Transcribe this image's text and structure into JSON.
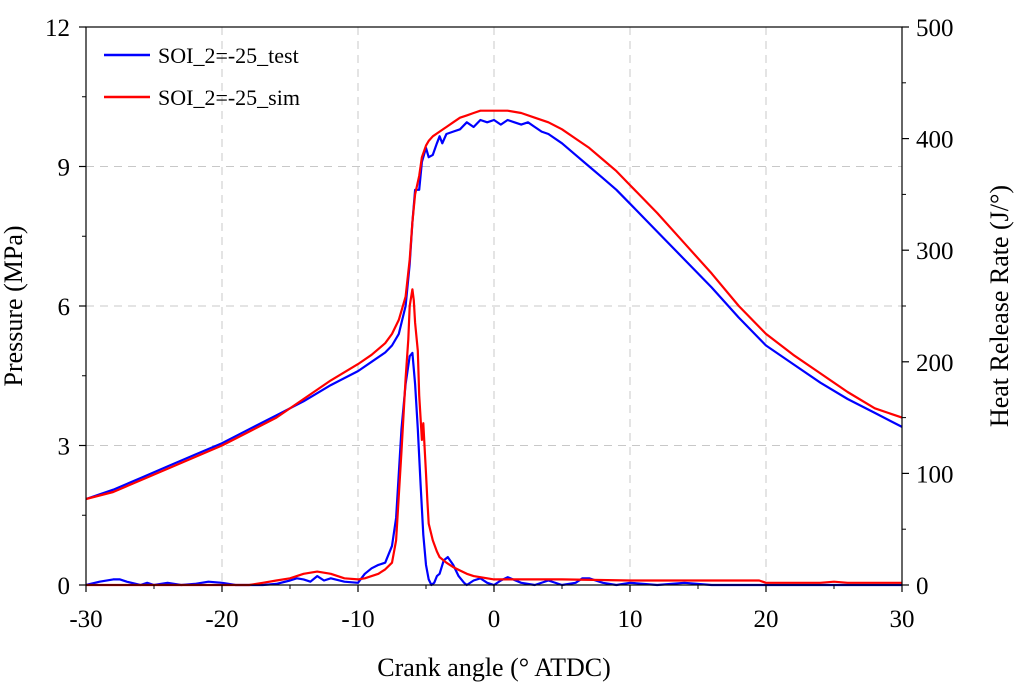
{
  "chart_data": {
    "type": "line",
    "title": "",
    "xlabel": "Crank angle  (° ATDC)",
    "ylabel_left": "Pressure (MPa)",
    "ylabel_right": "Heat Release Rate (J/°)",
    "xlim": [
      -30,
      30
    ],
    "ylim_left": [
      0,
      12
    ],
    "ylim_right": [
      0,
      500
    ],
    "x_ticks": [
      "-30",
      "-20",
      "-10",
      "0",
      "10",
      "20",
      "30"
    ],
    "y_left_ticks": [
      "0",
      "3",
      "6",
      "9",
      "12"
    ],
    "y_right_ticks": [
      "0",
      "100",
      "200",
      "300",
      "400",
      "500"
    ],
    "grid": true,
    "legend_position": "top-left",
    "series": [
      {
        "name": "SOI_2=-25_test",
        "axis": "left",
        "quantity": "pressure",
        "color": "#0000ff",
        "x": [
          -30,
          -28,
          -26,
          -24,
          -22,
          -20,
          -18,
          -16,
          -14,
          -12,
          -10,
          -9,
          -8,
          -7.5,
          -7,
          -6.5,
          -6.2,
          -6,
          -5.8,
          -5.5,
          -5.3,
          -5,
          -4.8,
          -4.5,
          -4.2,
          -4,
          -3.8,
          -3.5,
          -3,
          -2.5,
          -2,
          -1.5,
          -1,
          -0.5,
          0,
          0.5,
          1,
          1.5,
          2,
          2.5,
          3,
          3.5,
          4,
          5,
          6,
          7,
          8,
          9,
          10,
          12,
          14,
          16,
          18,
          20,
          22,
          24,
          26,
          28,
          30
        ],
        "y": [
          1.85,
          2.05,
          2.3,
          2.55,
          2.8,
          3.05,
          3.35,
          3.65,
          3.95,
          4.3,
          4.6,
          4.8,
          5.0,
          5.15,
          5.4,
          6.0,
          6.9,
          7.8,
          8.5,
          8.5,
          9.1,
          9.4,
          9.2,
          9.25,
          9.5,
          9.65,
          9.5,
          9.7,
          9.75,
          9.8,
          9.95,
          9.85,
          10.0,
          9.95,
          10.0,
          9.9,
          10.0,
          9.95,
          9.9,
          9.95,
          9.85,
          9.75,
          9.7,
          9.5,
          9.25,
          9.0,
          8.75,
          8.5,
          8.2,
          7.6,
          7.0,
          6.4,
          5.75,
          5.15,
          4.75,
          4.35,
          4.0,
          3.7,
          3.4
        ]
      },
      {
        "name": "SOI_2=-25_sim",
        "axis": "left",
        "quantity": "pressure",
        "color": "#ff0000",
        "x": [
          -30,
          -28,
          -26,
          -24,
          -22,
          -20,
          -18,
          -16,
          -14,
          -12,
          -10,
          -9,
          -8,
          -7.5,
          -7,
          -6.5,
          -6.2,
          -6,
          -5.8,
          -5.5,
          -5.3,
          -5,
          -4.8,
          -4.5,
          -4,
          -3.5,
          -3,
          -2.5,
          -2,
          -1.5,
          -1,
          0,
          1,
          2,
          3,
          4,
          5,
          6,
          7,
          8,
          9,
          10,
          12,
          14,
          16,
          18,
          20,
          22,
          24,
          26,
          28,
          30
        ],
        "y": [
          1.85,
          2.0,
          2.25,
          2.5,
          2.75,
          3.0,
          3.3,
          3.6,
          4.0,
          4.4,
          4.75,
          4.95,
          5.2,
          5.4,
          5.7,
          6.2,
          7.0,
          7.8,
          8.4,
          8.8,
          9.2,
          9.45,
          9.55,
          9.65,
          9.75,
          9.85,
          9.95,
          10.05,
          10.1,
          10.15,
          10.2,
          10.2,
          10.2,
          10.15,
          10.05,
          9.95,
          9.8,
          9.6,
          9.4,
          9.15,
          8.9,
          8.6,
          8.0,
          7.35,
          6.7,
          6.0,
          5.4,
          4.95,
          4.55,
          4.15,
          3.8,
          3.6
        ]
      },
      {
        "name": "SOI_2=-25_test",
        "axis": "right",
        "quantity": "heat release rate",
        "color": "#0000ff",
        "show_in_legend": false,
        "x": [
          -30,
          -29,
          -28,
          -27.5,
          -27,
          -26,
          -25.5,
          -25,
          -24,
          -23,
          -22,
          -21,
          -20,
          -19,
          -18,
          -17,
          -16,
          -15,
          -14.5,
          -14,
          -13.5,
          -13,
          -12.5,
          -12,
          -11,
          -10,
          -9.5,
          -9,
          -8.5,
          -8,
          -7.5,
          -7.2,
          -7,
          -6.8,
          -6.5,
          -6.2,
          -6,
          -5.8,
          -5.6,
          -5.4,
          -5.2,
          -5,
          -4.8,
          -4.6,
          -4.4,
          -4.2,
          -4,
          -3.7,
          -3.4,
          -3,
          -2.6,
          -2.2,
          -2,
          -1.5,
          -1,
          -0.5,
          0,
          0.5,
          1,
          2,
          3,
          4,
          5,
          6,
          6.5,
          7,
          8,
          9,
          10,
          12,
          14,
          16,
          18,
          20,
          22,
          24,
          26,
          28,
          30
        ],
        "y": [
          0,
          3,
          5,
          5,
          3,
          0,
          2,
          0,
          2,
          0,
          1,
          3,
          2,
          0,
          0,
          0,
          1,
          4,
          6,
          5,
          3,
          8,
          4,
          6,
          3,
          2,
          10,
          15,
          18,
          20,
          35,
          60,
          100,
          140,
          180,
          205,
          208,
          180,
          140,
          90,
          45,
          18,
          5,
          0,
          2,
          8,
          10,
          22,
          25,
          18,
          8,
          2,
          0,
          4,
          6,
          2,
          0,
          4,
          7,
          2,
          0,
          4,
          0,
          2,
          6,
          6,
          2,
          0,
          2,
          0,
          2,
          0,
          0,
          0,
          0,
          0,
          0,
          0,
          0
        ]
      },
      {
        "name": "SOI_2=-25_sim",
        "axis": "right",
        "quantity": "heat release rate",
        "color": "#ff0000",
        "show_in_legend": false,
        "x": [
          -30,
          -20,
          -18,
          -17,
          -16,
          -15,
          -14,
          -13,
          -12,
          -11,
          -10,
          -9.5,
          -9,
          -8.5,
          -8,
          -7.5,
          -7.2,
          -7,
          -6.8,
          -6.5,
          -6.3,
          -6.2,
          -6,
          -5.9,
          -5.8,
          -5.6,
          -5.5,
          -5.3,
          -5.2,
          -5,
          -4.9,
          -4.8,
          -4.5,
          -4.2,
          -4,
          -3.5,
          -3,
          -2.5,
          -2,
          -1.5,
          -1,
          -0.5,
          0,
          2,
          5,
          10,
          15,
          19.5,
          20,
          22,
          24,
          25,
          26,
          28,
          30
        ],
        "y": [
          0,
          0,
          0,
          2,
          4,
          6,
          10,
          12,
          10,
          6,
          5,
          6,
          8,
          10,
          14,
          20,
          40,
          80,
          120,
          185,
          220,
          250,
          265,
          255,
          235,
          210,
          170,
          130,
          145,
          100,
          75,
          55,
          40,
          30,
          25,
          20,
          16,
          13,
          10,
          8,
          7,
          6,
          5,
          5,
          5,
          4,
          4,
          4,
          2,
          2,
          2,
          3,
          2,
          2,
          2
        ]
      }
    ]
  }
}
